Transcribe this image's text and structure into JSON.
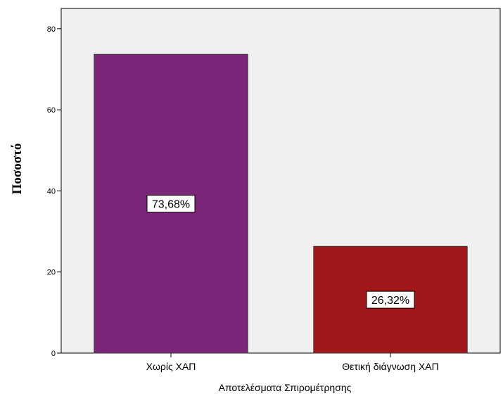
{
  "chart_data": {
    "type": "bar",
    "categories": [
      "Χωρίς ΧΑΠ",
      "Θετική διάγνωση ΧΑΠ"
    ],
    "values": [
      73.68,
      26.32
    ],
    "data_labels": [
      "73,68%",
      "26,32%"
    ],
    "xlabel": "Αποτελέσματα Σπιρομέτρησης",
    "ylabel": "Ποσοστό",
    "ylim": [
      0,
      85
    ],
    "yticks": [
      0,
      20,
      40,
      60,
      80
    ],
    "grid": false,
    "colors": {
      "plot_background": "#f0f0f0",
      "bars": [
        "#7b2678",
        "#a11619"
      ],
      "bar_stroke": "#3a3a3a",
      "label_box": "#ffffff"
    }
  }
}
